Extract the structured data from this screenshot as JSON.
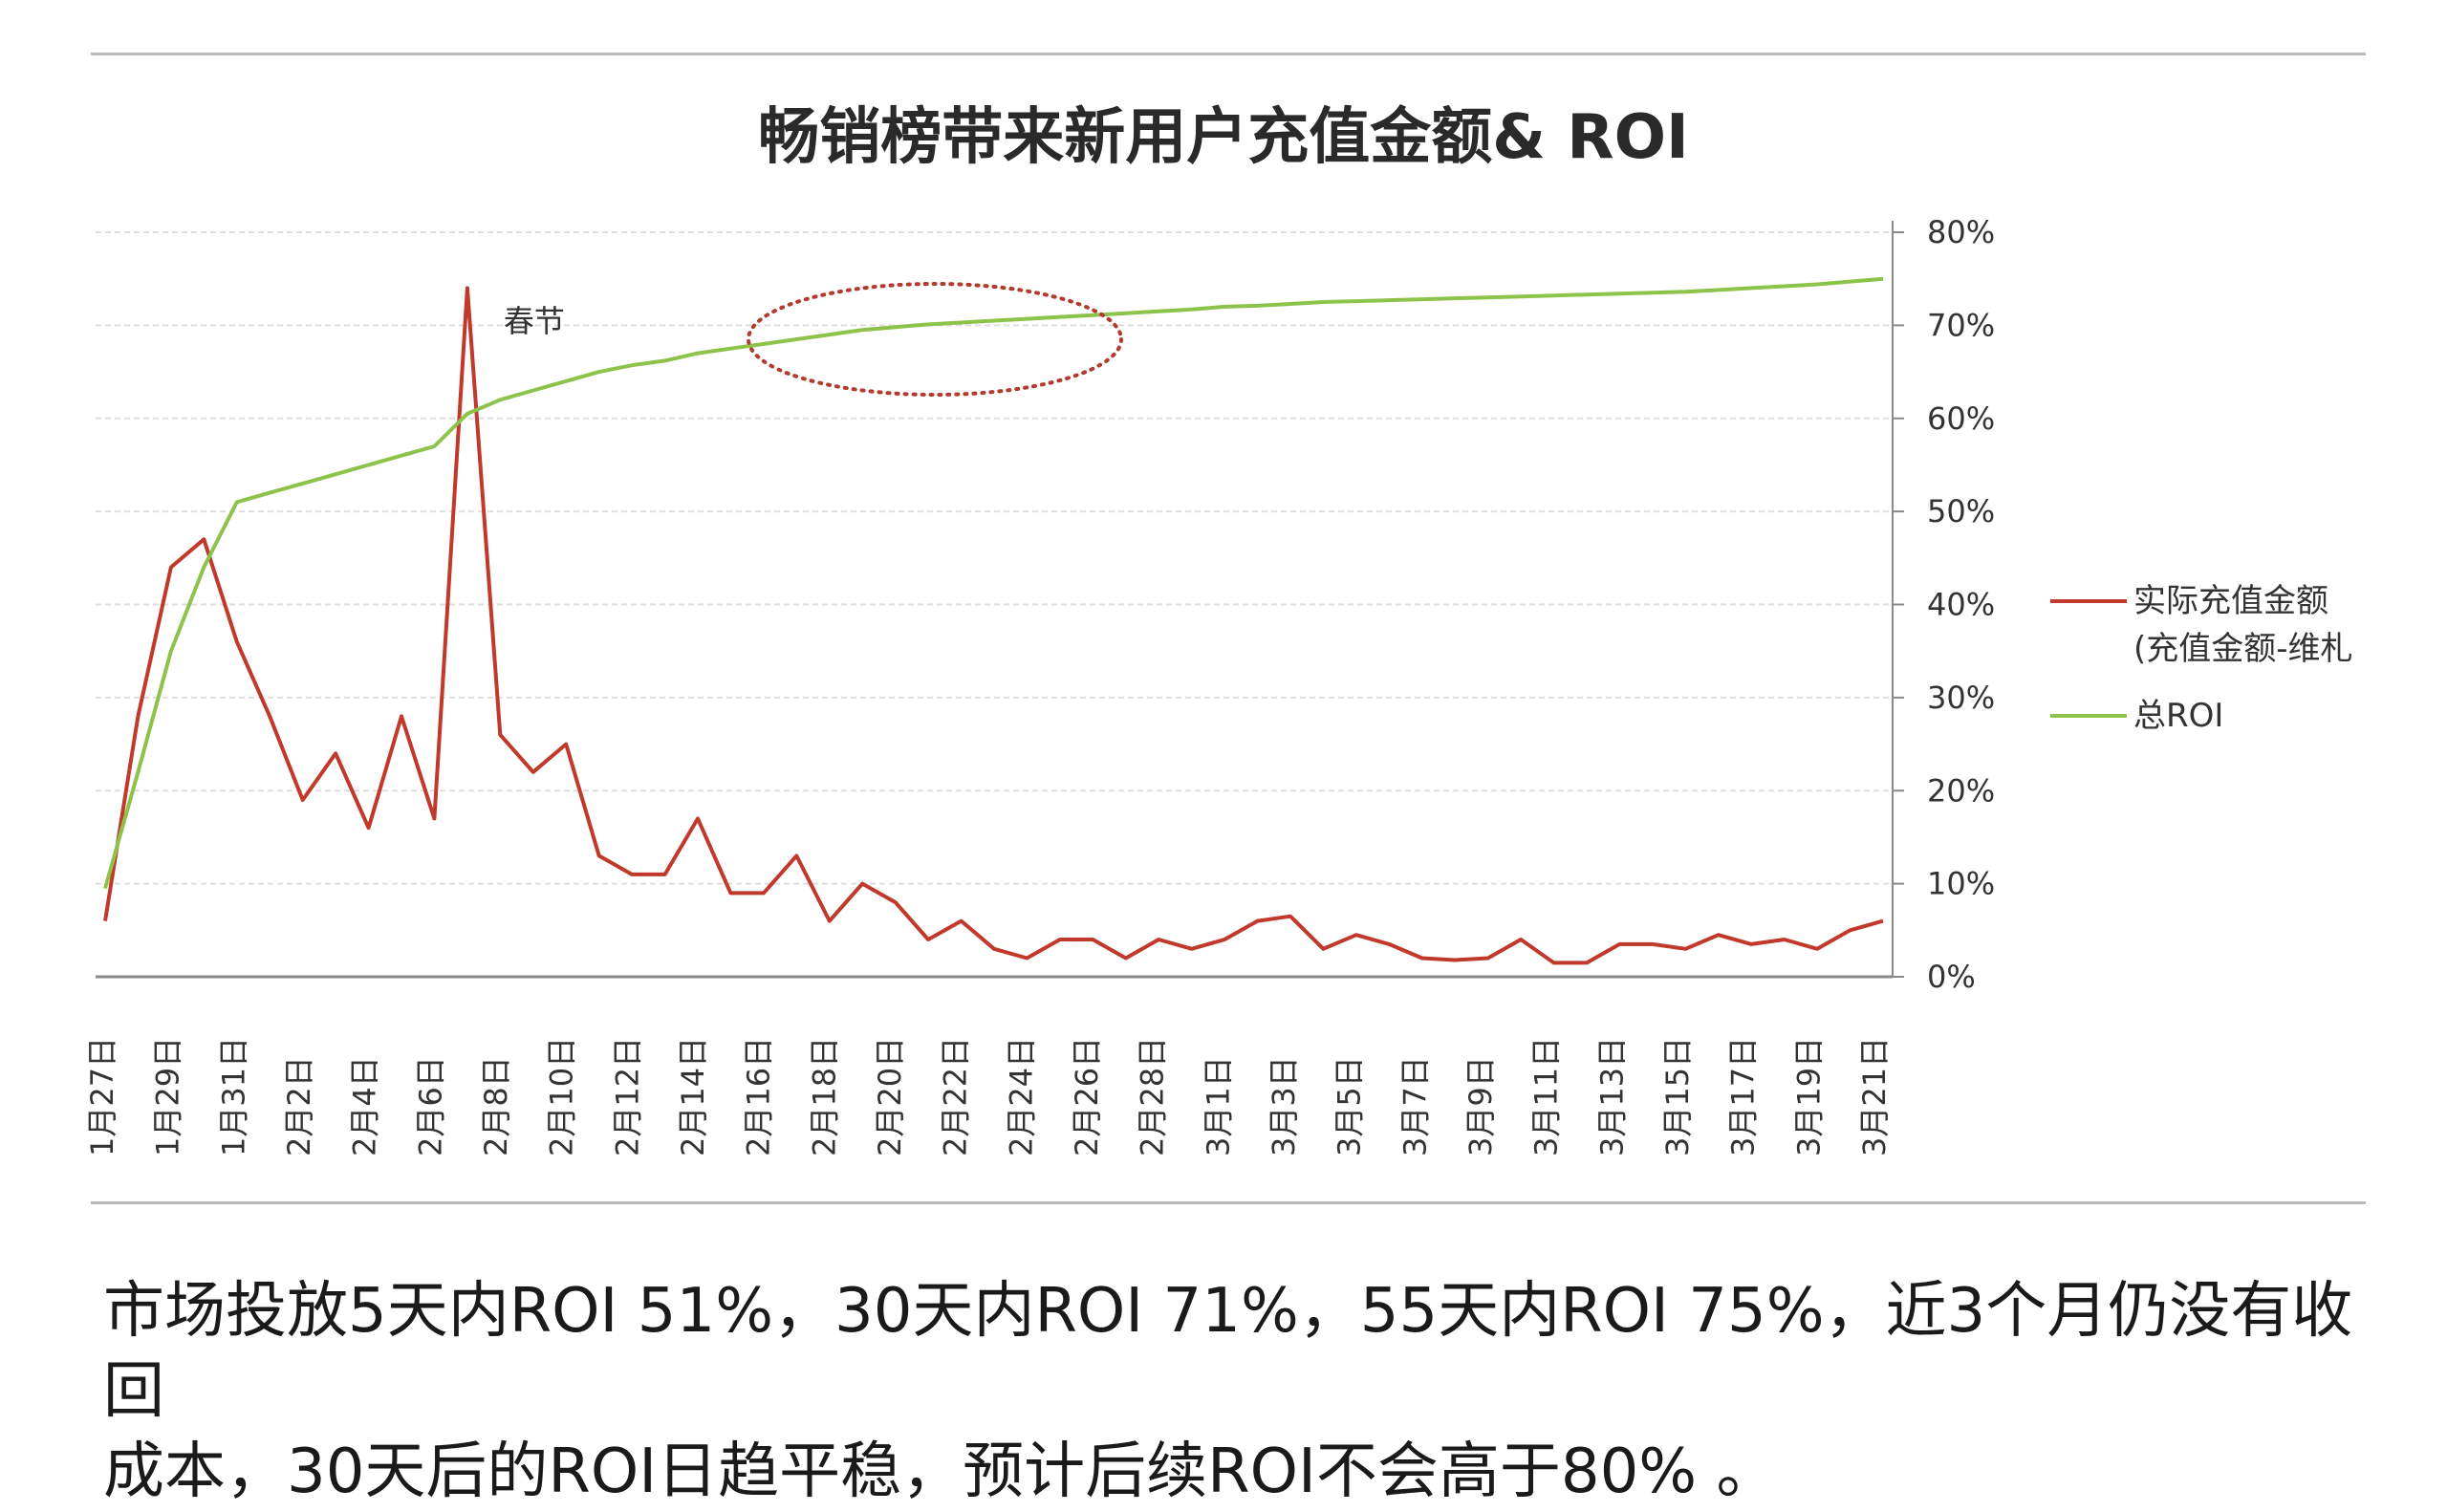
{
  "slide": {
    "summary_line1": "市场投放5天内ROI 51%，30天内ROI 71%，55天内ROI 75%，近3个月仍没有收回",
    "summary_line2": "成本，30天后的ROI日趋平稳，预计后续ROI不会高于80% 。"
  },
  "chart_data": {
    "type": "line",
    "title": "畅销榜带来新用户充值金额& ROI",
    "y_axis_side": "right",
    "ylim": [
      0,
      80
    ],
    "y_ticks": [
      "0%",
      "10%",
      "20%",
      "30%",
      "40%",
      "50%",
      "60%",
      "70%",
      "80%"
    ],
    "grid": true,
    "legend_position": "right",
    "x_tick_labels": [
      "1月27日",
      "1月29日",
      "1月31日",
      "2月2日",
      "2月4日",
      "2月6日",
      "2月8日",
      "2月10日",
      "2月12日",
      "2月14日",
      "2月16日",
      "2月18日",
      "2月20日",
      "2月22日",
      "2月24日",
      "2月26日",
      "2月28日",
      "3月1日",
      "3月3日",
      "3月5日",
      "3月7日",
      "3月9日",
      "3月11日",
      "3月13日",
      "3月15日",
      "3月17日",
      "3月19日",
      "3月21日"
    ],
    "series": [
      {
        "name": "实际充值金额",
        "name_line2": "(充值金额-维札",
        "color": "#c0392b",
        "values": [
          6,
          28,
          44,
          47,
          36,
          28,
          19,
          24,
          16,
          28,
          17,
          74,
          26,
          22,
          25,
          13,
          11,
          11,
          17,
          9,
          9,
          13,
          6,
          10,
          8,
          4,
          6,
          3,
          2,
          4,
          4,
          2,
          4,
          3,
          4,
          6,
          6.5,
          3,
          4.5,
          3.5,
          2,
          1.8,
          2,
          4,
          1.5,
          1.5,
          3.5,
          3.5,
          3,
          4.5,
          3.5,
          4,
          3,
          5,
          6
        ]
      },
      {
        "name": "总ROI",
        "color": "#8dc34a",
        "values": [
          9.5,
          22,
          35,
          44,
          51,
          52,
          53,
          54,
          55,
          56,
          57,
          60.5,
          62,
          63,
          64,
          65,
          65.7,
          66.2,
          67,
          67.5,
          68,
          68.5,
          69,
          69.5,
          69.8,
          70.1,
          70.3,
          70.5,
          70.7,
          70.9,
          71.1,
          71.3,
          71.5,
          71.7,
          72,
          72.1,
          72.3,
          72.5,
          72.6,
          72.7,
          72.8,
          72.9,
          73,
          73.1,
          73.2,
          73.3,
          73.4,
          73.5,
          73.6,
          73.8,
          74,
          74.2,
          74.4,
          74.7,
          75
        ]
      }
    ],
    "annotations": [
      {
        "text": "春节"
      }
    ]
  }
}
